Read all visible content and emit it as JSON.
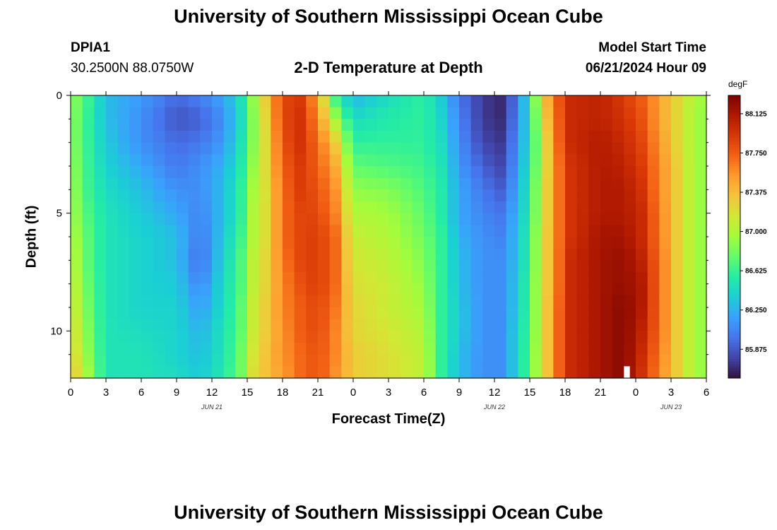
{
  "header": {
    "title": "University of Southern Mississippi Ocean Cube",
    "station_id": "DPIA1",
    "coordinates": "30.2500N  88.0750W",
    "subtitle": "2-D Temperature at Depth",
    "model_start_label": "Model Start Time",
    "model_start_value": "06/21/2024 Hour 09"
  },
  "footer": {
    "title": "University of Southern Mississippi Ocean Cube"
  },
  "colors": {
    "background": "#ffffff",
    "colormap": [
      "#30123b",
      "#4145ab",
      "#4675ed",
      "#39a2fc",
      "#1bcfd4",
      "#24eca6",
      "#61fc6c",
      "#a4fc3b",
      "#d1e834",
      "#f3c63a",
      "#fe9b2d",
      "#f36315",
      "#d93806",
      "#b11901",
      "#7a0402"
    ]
  },
  "chart_data": {
    "type": "heatmap",
    "title": "2-D Temperature at Depth",
    "xlabel": "Forecast Time(Z)",
    "ylabel": "Depth (ft)",
    "x_unit": "hours since 06/21 00Z",
    "x_range": [
      0,
      54
    ],
    "y_range": [
      0,
      12
    ],
    "x_ticks": [
      0,
      3,
      6,
      9,
      12,
      15,
      18,
      21,
      24,
      27,
      30,
      33,
      36,
      39,
      42,
      45,
      48,
      51,
      54
    ],
    "x_tick_labels": [
      "0",
      "3",
      "6",
      "9",
      "12",
      "15",
      "18",
      "21",
      "0",
      "3",
      "6",
      "9",
      "12",
      "15",
      "18",
      "21",
      "0",
      "3",
      "6"
    ],
    "y_ticks": [
      0,
      5,
      10
    ],
    "y_tick_labels": [
      "0",
      "5",
      "10"
    ],
    "date_labels": [
      {
        "x": 12,
        "label": "JUN 21"
      },
      {
        "x": 36,
        "label": "JUN 22"
      },
      {
        "x": 51,
        "label": "JUN 23"
      }
    ],
    "colorbar": {
      "unit": "degF",
      "min": 85.6,
      "max": 88.3,
      "ticks": [
        85.875,
        86.25,
        86.625,
        87.0,
        87.375,
        87.75,
        88.125
      ],
      "tick_labels": [
        "85.875",
        "86.250",
        "86.625",
        "87.000",
        "87.375",
        "87.750",
        "88.125"
      ]
    },
    "depths": [
      0,
      1,
      2,
      3,
      4,
      5,
      6,
      7,
      8,
      9,
      10,
      11,
      12
    ],
    "keyframes": [
      {
        "x": 0,
        "values": [
          86.9,
          86.9,
          86.9,
          86.95,
          87.0,
          87.0,
          87.05,
          87.1,
          87.15,
          87.2,
          87.25,
          87.3,
          87.4
        ]
      },
      {
        "x": 1,
        "values": [
          86.75,
          86.7,
          86.7,
          86.7,
          86.7,
          86.75,
          86.8,
          86.8,
          86.85,
          86.9,
          86.95,
          87.0,
          87.1
        ]
      },
      {
        "x": 3,
        "values": [
          86.3,
          86.3,
          86.35,
          86.4,
          86.45,
          86.5,
          86.5,
          86.5,
          86.5,
          86.5,
          86.5,
          86.5,
          86.5
        ]
      },
      {
        "x": 6,
        "values": [
          86.15,
          86.1,
          86.1,
          86.2,
          86.3,
          86.35,
          86.4,
          86.4,
          86.4,
          86.4,
          86.45,
          86.5,
          86.5
        ]
      },
      {
        "x": 9,
        "values": [
          85.95,
          85.85,
          85.95,
          86.0,
          86.1,
          86.2,
          86.3,
          86.3,
          86.35,
          86.4,
          86.4,
          86.4,
          86.45
        ]
      },
      {
        "x": 11,
        "values": [
          86.05,
          85.9,
          86.0,
          86.1,
          86.1,
          86.05,
          86.0,
          85.95,
          86.05,
          86.15,
          86.25,
          86.3,
          86.35
        ]
      },
      {
        "x": 13,
        "values": [
          86.2,
          86.1,
          86.15,
          86.25,
          86.3,
          86.3,
          86.35,
          86.4,
          86.45,
          86.45,
          86.5,
          86.5,
          86.55
        ]
      },
      {
        "x": 14.5,
        "values": [
          86.5,
          86.45,
          86.5,
          86.55,
          86.6,
          86.6,
          86.65,
          86.7,
          86.7,
          86.75,
          86.75,
          86.8,
          86.8
        ]
      },
      {
        "x": 15.5,
        "values": [
          86.9,
          86.85,
          86.85,
          86.9,
          86.95,
          87.0,
          87.0,
          87.05,
          87.05,
          87.1,
          87.1,
          87.15,
          87.2
        ]
      },
      {
        "x": 16.8,
        "values": [
          87.4,
          87.35,
          87.3,
          87.3,
          87.25,
          87.25,
          87.25,
          87.3,
          87.3,
          87.35,
          87.35,
          87.4,
          87.4
        ]
      },
      {
        "x": 18,
        "values": [
          87.85,
          87.85,
          87.8,
          87.75,
          87.7,
          87.7,
          87.7,
          87.65,
          87.6,
          87.6,
          87.55,
          87.55,
          87.5
        ]
      },
      {
        "x": 19.5,
        "values": [
          87.9,
          87.95,
          87.95,
          87.9,
          87.9,
          87.85,
          87.85,
          87.85,
          87.8,
          87.75,
          87.75,
          87.7,
          87.7
        ]
      },
      {
        "x": 21,
        "values": [
          87.5,
          87.6,
          87.7,
          87.75,
          87.8,
          87.85,
          87.9,
          87.9,
          87.9,
          87.85,
          87.85,
          87.8,
          87.8
        ]
      },
      {
        "x": 22.5,
        "values": [
          86.6,
          86.95,
          87.3,
          87.45,
          87.55,
          87.6,
          87.7,
          87.7,
          87.7,
          87.65,
          87.6,
          87.6,
          87.55
        ]
      },
      {
        "x": 24,
        "values": [
          86.25,
          86.45,
          86.6,
          86.75,
          86.9,
          87.0,
          87.1,
          87.15,
          87.2,
          87.25,
          87.25,
          87.3,
          87.3
        ]
      },
      {
        "x": 27,
        "values": [
          86.45,
          86.55,
          86.6,
          86.7,
          86.85,
          86.95,
          87.0,
          87.05,
          87.1,
          87.1,
          87.15,
          87.2,
          87.2
        ]
      },
      {
        "x": 30,
        "values": [
          86.6,
          86.6,
          86.6,
          86.65,
          86.7,
          86.75,
          86.8,
          86.85,
          86.9,
          86.95,
          87.0,
          87.05,
          87.05
        ]
      },
      {
        "x": 31.5,
        "values": [
          86.35,
          86.4,
          86.45,
          86.5,
          86.55,
          86.55,
          86.6,
          86.6,
          86.6,
          86.6,
          86.6,
          86.6,
          86.6
        ]
      },
      {
        "x": 33,
        "values": [
          86.0,
          86.05,
          86.1,
          86.15,
          86.2,
          86.2,
          86.25,
          86.3,
          86.3,
          86.35,
          86.35,
          86.3,
          86.3
        ]
      },
      {
        "x": 35,
        "values": [
          85.75,
          85.75,
          85.8,
          85.9,
          86.0,
          86.05,
          86.1,
          86.1,
          86.1,
          86.1,
          86.1,
          86.1,
          86.1
        ]
      },
      {
        "x": 36.5,
        "values": [
          85.7,
          85.7,
          85.75,
          85.8,
          85.9,
          86.0,
          86.05,
          86.1,
          86.1,
          86.1,
          86.1,
          86.1,
          86.1
        ]
      },
      {
        "x": 38,
        "values": [
          86.0,
          86.05,
          86.1,
          86.15,
          86.2,
          86.25,
          86.3,
          86.3,
          86.35,
          86.35,
          86.4,
          86.4,
          86.4
        ]
      },
      {
        "x": 39,
        "values": [
          86.55,
          86.5,
          86.5,
          86.55,
          86.6,
          86.6,
          86.65,
          86.65,
          86.7,
          86.7,
          86.7,
          86.75,
          86.75
        ]
      },
      {
        "x": 40,
        "values": [
          87.2,
          87.1,
          87.0,
          87.0,
          87.05,
          87.05,
          87.1,
          87.1,
          87.1,
          87.1,
          87.1,
          87.1,
          87.1
        ]
      },
      {
        "x": 41,
        "values": [
          87.7,
          87.65,
          87.6,
          87.55,
          87.55,
          87.55,
          87.55,
          87.55,
          87.55,
          87.6,
          87.6,
          87.6,
          87.6
        ]
      },
      {
        "x": 42.5,
        "values": [
          88.0,
          88.0,
          88.0,
          87.95,
          87.95,
          87.95,
          87.95,
          88.0,
          88.0,
          88.0,
          88.0,
          88.0,
          88.0
        ]
      },
      {
        "x": 45,
        "values": [
          88.05,
          88.05,
          88.1,
          88.1,
          88.1,
          88.1,
          88.15,
          88.15,
          88.15,
          88.15,
          88.15,
          88.15,
          88.15
        ]
      },
      {
        "x": 47,
        "values": [
          87.9,
          87.95,
          88.0,
          88.05,
          88.1,
          88.1,
          88.15,
          88.2,
          88.2,
          88.25,
          88.25,
          88.25,
          88.25
        ]
      },
      {
        "x": 48.5,
        "values": [
          87.75,
          87.8,
          87.85,
          87.9,
          87.95,
          88.0,
          88.0,
          88.05,
          88.1,
          88.1,
          88.05,
          88.0,
          87.95
        ]
      },
      {
        "x": 50,
        "values": [
          87.5,
          87.5,
          87.55,
          87.6,
          87.6,
          87.65,
          87.65,
          87.7,
          87.7,
          87.7,
          87.7,
          87.65,
          87.6
        ]
      },
      {
        "x": 51.5,
        "values": [
          87.25,
          87.25,
          87.25,
          87.3,
          87.3,
          87.3,
          87.3,
          87.3,
          87.3,
          87.3,
          87.3,
          87.3,
          87.3
        ]
      },
      {
        "x": 53,
        "values": [
          87.0,
          86.95,
          86.95,
          86.95,
          86.95,
          86.95,
          86.95,
          86.95,
          86.95,
          86.95,
          86.95,
          86.95,
          86.95
        ]
      },
      {
        "x": 54,
        "values": [
          86.9,
          86.9,
          86.9,
          86.9,
          86.9,
          86.9,
          86.9,
          86.9,
          86.9,
          86.9,
          86.9,
          86.9,
          86.9
        ]
      }
    ],
    "missing_cell": {
      "x": 47,
      "depth_from": 11.5,
      "depth_to": 12
    }
  }
}
